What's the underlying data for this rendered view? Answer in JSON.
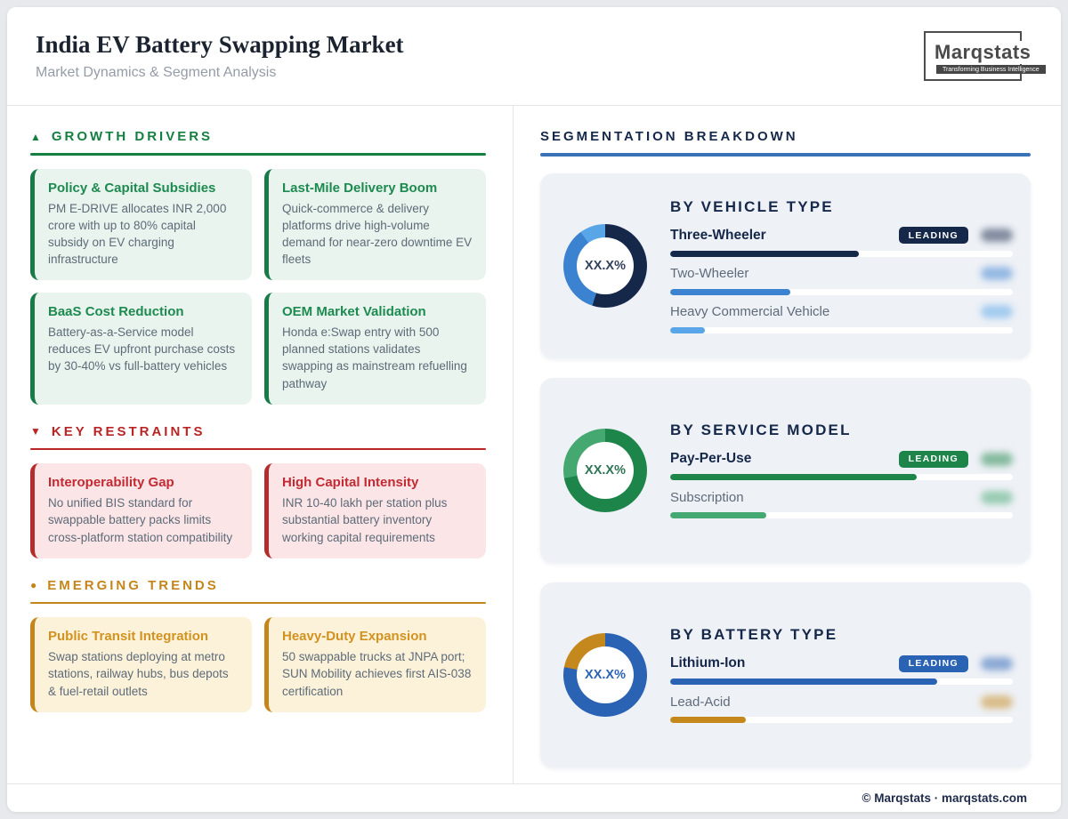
{
  "header": {
    "title": "India EV Battery Swapping Market",
    "subtitle": "Market Dynamics & Segment Analysis",
    "logo": {
      "name": "Marqstats",
      "tagline": "Transforming Business Intelligence"
    }
  },
  "left": {
    "sections": [
      {
        "id": "growth-drivers",
        "marker": "▲",
        "marker_icon": "triangle-up-icon",
        "title": "GROWTH DRIVERS",
        "theme": {
          "accent": "#157f42",
          "card_bg": "#e9f4ee",
          "card_border": "#177a47",
          "card_title": "#1d8a50"
        },
        "cards": [
          {
            "title": "Policy & Capital Subsidies",
            "body": "PM E-DRIVE allocates INR 2,000 crore with up to 80% capital subsidy on EV charging infrastructure"
          },
          {
            "title": "Last-Mile Delivery Boom",
            "body": "Quick-commerce & delivery platforms drive high-volume demand for near-zero downtime EV fleets"
          },
          {
            "title": "BaaS Cost Reduction",
            "body": "Battery-as-a-Service model reduces EV upfront purchase costs by 30-40% vs full-battery vehicles"
          },
          {
            "title": "OEM Market Validation",
            "body": "Honda e:Swap entry with 500 planned stations validates swapping as mainstream refuelling pathway"
          }
        ]
      },
      {
        "id": "key-restraints",
        "marker": "▼",
        "marker_icon": "triangle-down-icon",
        "title": "KEY RESTRAINTS",
        "theme": {
          "accent": "#b92525",
          "card_bg": "#fbe5e7",
          "card_border": "#b32d2d",
          "card_title": "#c22b33"
        },
        "cards": [
          {
            "title": "Interoperability Gap",
            "body": "No unified BIS standard for swappable battery packs limits cross-platform station compatibility"
          },
          {
            "title": "High Capital Intensity",
            "body": "INR 10-40 lakh per station plus substantial battery inventory working capital requirements"
          }
        ]
      },
      {
        "id": "emerging-trends",
        "marker": "●",
        "marker_icon": "circle-icon",
        "title": "EMERGING TRENDS",
        "theme": {
          "accent": "#c4861c",
          "card_bg": "#fcf2da",
          "card_border": "#c4861c",
          "card_title": "#d2921f"
        },
        "cards": [
          {
            "title": "Public Transit Integration",
            "body": "Swap stations deploying at metro stations, railway hubs, bus depots & fuel-retail outlets"
          },
          {
            "title": "Heavy-Duty Expansion",
            "body": "50 swappable trucks at JNPA port; SUN Mobility achieves first AIS-038 certification"
          }
        ]
      }
    ]
  },
  "right": {
    "title": "SEGMENTATION BREAKDOWN",
    "underline_color": "#3a72b8",
    "cards": [
      {
        "title": "BY VEHICLE TYPE",
        "center_label": "XX.X%",
        "center_color": "#33415c",
        "badge_label": "LEADING",
        "badge_color": "#16284a",
        "rows": [
          {
            "label": "Three-Wheeler",
            "leading": true,
            "pct": 55,
            "color": "#16284a"
          },
          {
            "label": "Two-Wheeler",
            "leading": false,
            "pct": 35,
            "color": "#3b82d0"
          },
          {
            "label": "Heavy Commercial Vehicle",
            "leading": false,
            "pct": 10,
            "color": "#58a6e8"
          }
        ]
      },
      {
        "title": "BY SERVICE MODEL",
        "center_label": "XX.X%",
        "center_color": "#2f7456",
        "badge_label": "LEADING",
        "badge_color": "#1d8549",
        "rows": [
          {
            "label": "Pay-Per-Use",
            "leading": true,
            "pct": 72,
            "color": "#1d8549"
          },
          {
            "label": "Subscription",
            "leading": false,
            "pct": 28,
            "color": "#45a871"
          }
        ]
      },
      {
        "title": "BY BATTERY TYPE",
        "center_label": "XX.X%",
        "center_color": "#2a62b4",
        "badge_label": "LEADING",
        "badge_color": "#2a62b4",
        "rows": [
          {
            "label": "Lithium-Ion",
            "leading": true,
            "pct": 78,
            "color": "#2a62b4"
          },
          {
            "label": "Lead-Acid",
            "leading": false,
            "pct": 22,
            "color": "#c4881c"
          }
        ]
      }
    ]
  },
  "chart_data": [
    {
      "type": "pie",
      "title": "BY VEHICLE TYPE",
      "labels": [
        "Three-Wheeler",
        "Two-Wheeler",
        "Heavy Commercial Vehicle"
      ],
      "values": [
        55,
        35,
        10
      ],
      "center_label": "XX.X%",
      "legend_position": "right"
    },
    {
      "type": "pie",
      "title": "BY SERVICE MODEL",
      "labels": [
        "Pay-Per-Use",
        "Subscription"
      ],
      "values": [
        72,
        28
      ],
      "center_label": "XX.X%",
      "legend_position": "right"
    },
    {
      "type": "pie",
      "title": "BY BATTERY TYPE",
      "labels": [
        "Lithium-Ion",
        "Lead-Acid"
      ],
      "values": [
        78,
        22
      ],
      "center_label": "XX.X%",
      "legend_position": "right"
    }
  ],
  "footer": {
    "text": "© Marqstats · marqstats.com"
  }
}
